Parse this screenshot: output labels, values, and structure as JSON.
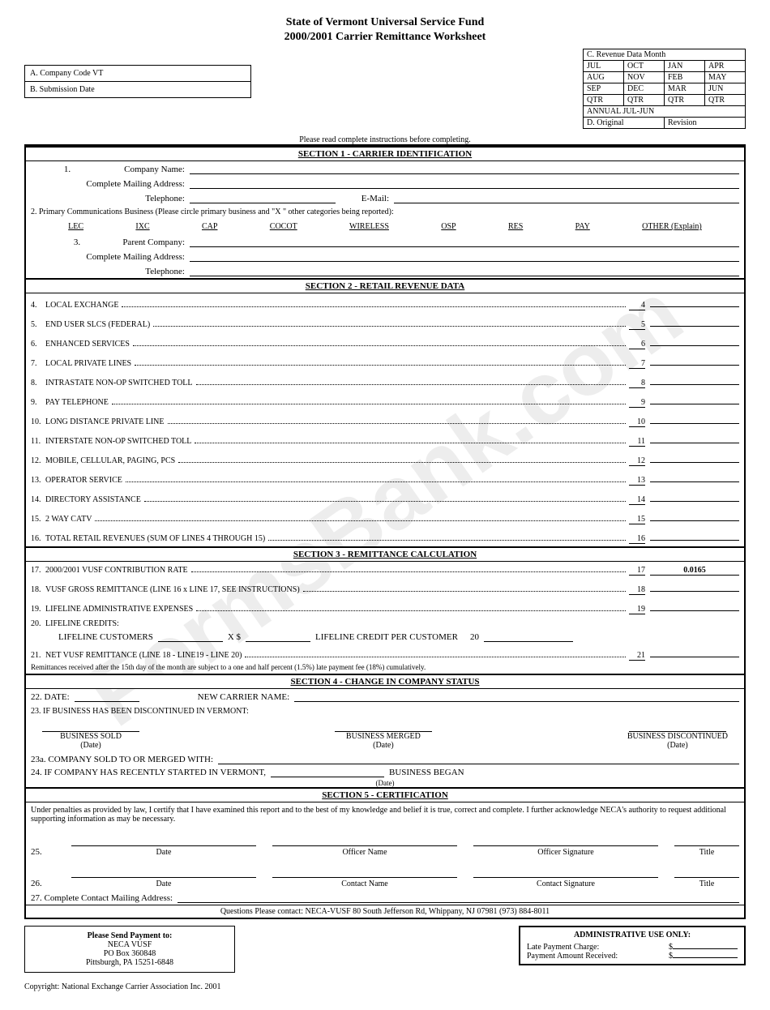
{
  "title": "State of Vermont Universal Service Fund",
  "subtitle": "2000/2001 Carrier Remittance Worksheet",
  "boxA": "A. Company Code VT",
  "boxB": "B. Submission Date",
  "monthHeader": "C. Revenue Data Month",
  "months": [
    [
      "JUL",
      "OCT",
      "JAN",
      "APR"
    ],
    [
      "AUG",
      "NOV",
      "FEB",
      "MAY"
    ],
    [
      "SEP",
      "DEC",
      "MAR",
      "JUN"
    ],
    [
      "QTR",
      "QTR",
      "QTR",
      "QTR"
    ]
  ],
  "annual": "ANNUAL JUL-JUN",
  "original": "D. Original",
  "revision": "Revision",
  "instr": "Please read complete instructions before completing.",
  "sec1": "SECTION 1 - CARRIER IDENTIFICATION",
  "row1": {
    "num": "1.",
    "lblCompany": "Company Name:",
    "lblAddr": "Complete Mailing Address:",
    "lblTel": "Telephone:",
    "lblEmail": "E-Mail:"
  },
  "row2": "2. Primary Communications Business (Please circle primary business and \"X \" other categories being reported):",
  "cats": [
    "LEC",
    "IXC",
    "CAP",
    "COCOT",
    "WIRELESS",
    "OSP",
    "RES",
    "PAY",
    "OTHER (Explain)"
  ],
  "row3": {
    "num": "3.",
    "lblParent": "Parent Company:",
    "lblAddr": "Complete Mailing Address:",
    "lblTel": "Telephone:"
  },
  "sec2": "SECTION 2 - RETAIL REVENUE DATA",
  "revLines": [
    {
      "n": "4.",
      "t": "LOCAL EXCHANGE",
      "r": "4"
    },
    {
      "n": "5.",
      "t": "END USER SLCS (FEDERAL)",
      "r": "5"
    },
    {
      "n": "6.",
      "t": "ENHANCED SERVICES",
      "r": "6"
    },
    {
      "n": "7.",
      "t": "LOCAL PRIVATE LINES",
      "r": "7"
    },
    {
      "n": "8.",
      "t": "INTRASTATE NON-OP SWITCHED TOLL",
      "r": "8"
    },
    {
      "n": "9.",
      "t": "PAY TELEPHONE",
      "r": "9"
    },
    {
      "n": "10.",
      "t": "LONG DISTANCE PRIVATE LINE",
      "r": "10"
    },
    {
      "n": "11.",
      "t": "INTERSTATE NON-OP SWITCHED TOLL",
      "r": "11"
    },
    {
      "n": "12.",
      "t": "MOBILE, CELLULAR, PAGING, PCS",
      "r": "12"
    },
    {
      "n": "13.",
      "t": "OPERATOR SERVICE",
      "r": "13"
    },
    {
      "n": "14.",
      "t": "DIRECTORY ASSISTANCE",
      "r": "14"
    },
    {
      "n": "15.",
      "t": "2 WAY CATV",
      "r": "15"
    },
    {
      "n": "16.",
      "t": "TOTAL RETAIL REVENUES (SUM OF LINES 4 THROUGH 15)",
      "r": "16"
    }
  ],
  "sec3": "SECTION 3 - REMITTANCE CALCULATION",
  "remitLines": [
    {
      "n": "17.",
      "t": "2000/2001 VUSF CONTRIBUTION RATE",
      "r": "17",
      "v": "0.0165"
    },
    {
      "n": "18.",
      "t": "VUSF GROSS REMITTANCE (LINE 16 x LINE 17, SEE INSTRUCTIONS)",
      "r": "18",
      "v": ""
    },
    {
      "n": "19.",
      "t": "LIFELINE ADMINISTRATIVE EXPENSES",
      "r": "19",
      "v": ""
    }
  ],
  "line20": {
    "n": "20.",
    "t": "LIFELINE CREDITS:",
    "sub": "LIFELINE CUSTOMERS",
    "mid": "X        $",
    "per": "LIFELINE CREDIT PER CUSTOMER",
    "r": "20"
  },
  "line21": {
    "n": "21.",
    "t": "NET VUSF REMITTANCE (LINE 18 - LINE19 - LINE 20)",
    "r": "21"
  },
  "lateNote": "Remittances received after the 15th day of the month are subject to a one and half percent (1.5%) late payment fee (18%) cumulatively.",
  "sec4": "SECTION 4 - CHANGE IN COMPANY STATUS",
  "s4": {
    "date": "22. DATE:",
    "newName": "NEW CARRIER NAME:",
    "disc": "23. IF BUSINESS HAS BEEN DISCONTINUED IN VERMONT:",
    "sold": "BUSINESS SOLD",
    "merged": "BUSINESS MERGED",
    "discLbl": "BUSINESS DISCONTINUED",
    "dateLbl": "(Date)",
    "soldTo": "23a. COMPANY SOLD TO OR MERGED WITH:",
    "started": "24. IF COMPANY HAS RECENTLY STARTED IN VERMONT,",
    "began": "BUSINESS BEGAN"
  },
  "sec5": "SECTION 5 - CERTIFICATION",
  "cert": "Under penalties as provided by law, I certify that I have examined this report and to the best of my knowledge and belief it is true, correct and complete. I further acknowledge NECA's authority to request additional supporting information as may be necessary.",
  "sig": {
    "n25": "25.",
    "n26": "26.",
    "date": "Date",
    "officer": "Officer Name",
    "osig": "Officer Signature",
    "title": "Title",
    "contact": "Contact Name",
    "csig": "Contact Signature"
  },
  "row27": "27. Complete Contact Mailing Address:",
  "questions": "Questions Please contact:   NECA-VUSF 80 South Jefferson Rd,  Whippany, NJ 07981 (973) 884-8011",
  "payTo": {
    "hd": "Please Send Payment to:",
    "l1": "NECA VUSF",
    "l2": "PO Box 360848",
    "l3": "Pittsburgh, PA 15251-6848"
  },
  "admin": {
    "hd": "ADMINISTRATIVE USE ONLY:",
    "late": "Late Payment Charge:",
    "rec": "Payment Amount Received:",
    "d": "$"
  },
  "copyright": "Copyright:   National Exchange Carrier Association Inc. 2001"
}
